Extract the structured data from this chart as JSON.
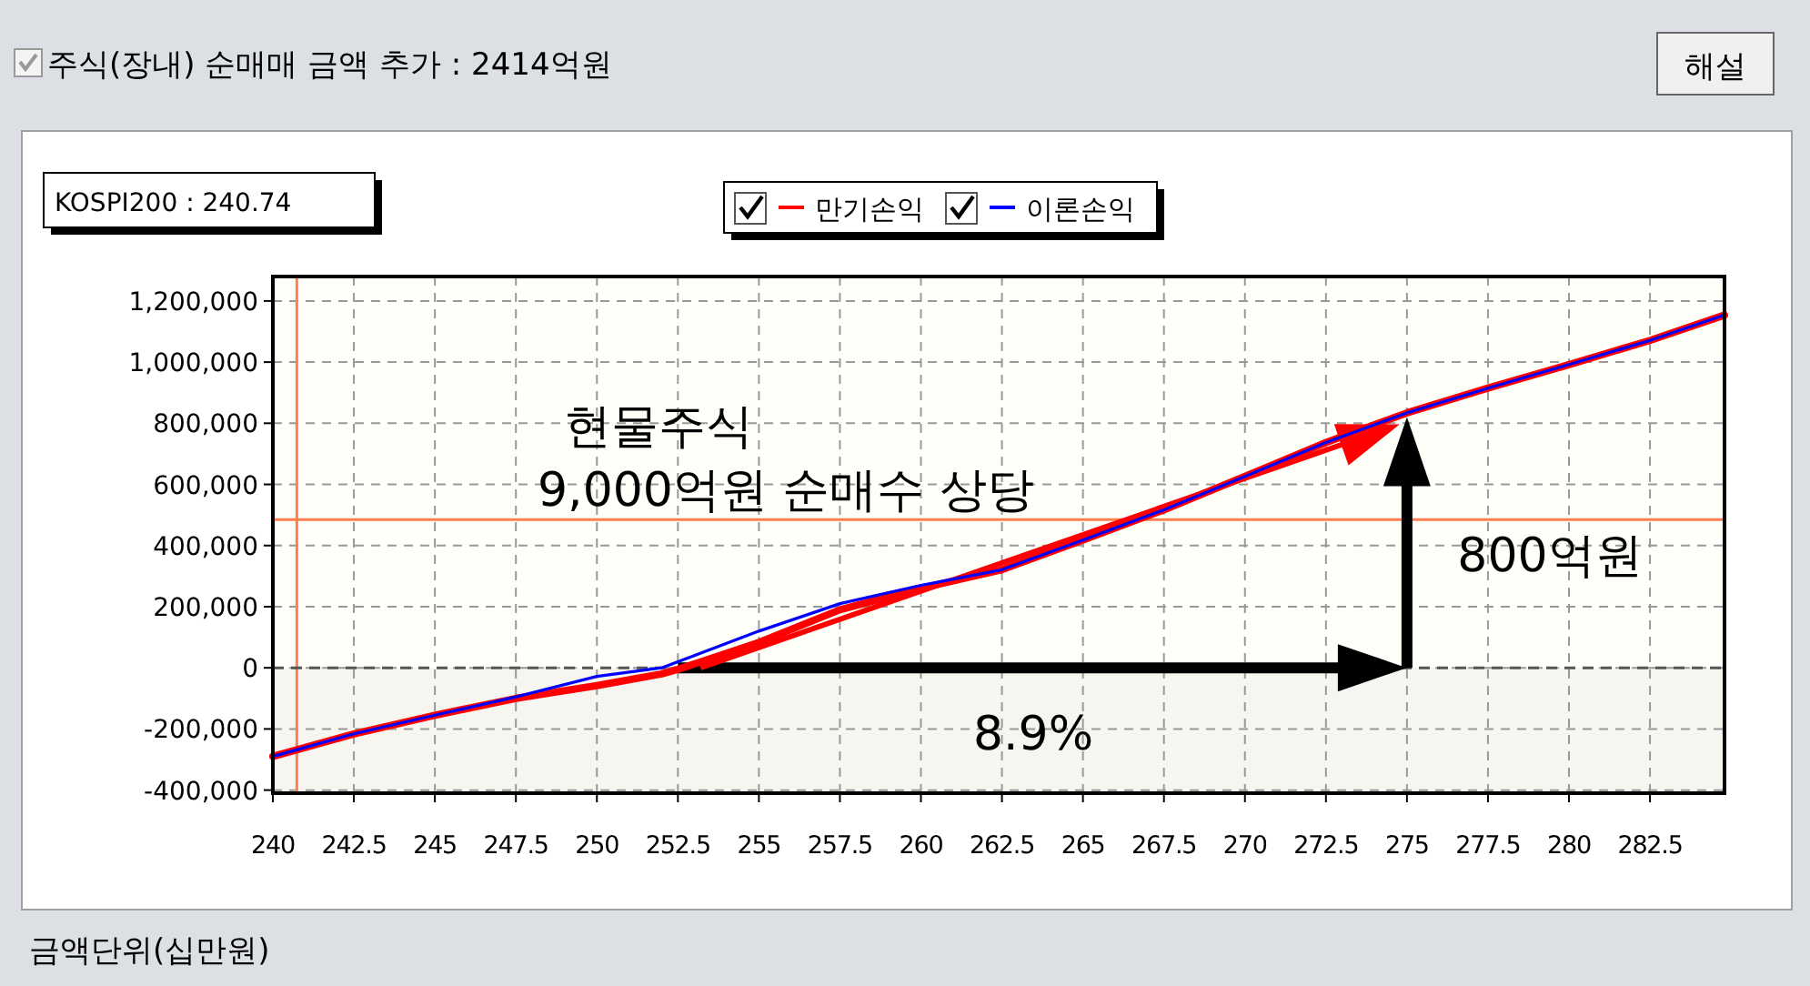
{
  "chart_data": {
    "type": "line",
    "title": "주식(장내) 순매매 금액 추가 : 2414억원",
    "x": [
      240,
      242.5,
      245,
      247.5,
      250,
      252,
      252.5,
      255,
      257.5,
      260,
      262.5,
      265,
      267.5,
      270,
      272.5,
      275,
      277.5,
      280,
      282.5,
      284.8
    ],
    "series": [
      {
        "name": "만기손익",
        "color": "#ff0000",
        "values": [
          -290000,
          -216000,
          -155000,
          -100000,
          -58000,
          -20000,
          -5000,
          83000,
          190000,
          260000,
          321000,
          418000,
          517000,
          626000,
          737000,
          834000,
          915000,
          992000,
          1071000,
          1154000
        ]
      },
      {
        "name": "이론손익",
        "color": "#0000ff",
        "values": [
          -290000,
          -216000,
          -155000,
          -95000,
          -28000,
          0,
          20000,
          120000,
          210000,
          270000,
          321000,
          418000,
          517000,
          626000,
          737000,
          834000,
          915000,
          992000,
          1071000,
          1154000
        ]
      }
    ],
    "xlim": [
      240,
      284.8
    ],
    "ylim": [
      -410000,
      1280000
    ],
    "xticks": [
      240,
      242.5,
      245,
      247.5,
      250,
      252.5,
      255,
      257.5,
      260,
      262.5,
      265,
      267.5,
      270,
      272.5,
      275,
      277.5,
      280,
      282.5
    ],
    "yticks": [
      {
        "value": -400000,
        "label": "-400,000"
      },
      {
        "value": -200000,
        "label": "-200,000"
      },
      0,
      {
        "value": 200000,
        "label": "200,000"
      },
      {
        "value": 400000,
        "label": "400,000"
      },
      {
        "value": 600000,
        "label": "600,000"
      },
      {
        "value": 800000,
        "label": "800,000"
      },
      {
        "value": 1000000,
        "label": "1,000,000"
      },
      {
        "value": 1200000,
        "label": "1,200,000"
      }
    ],
    "ref_lines": [
      {
        "axis": "x",
        "value": 240.74,
        "label": "KOSPI200 : 240.74",
        "color": "#ff7f50"
      },
      {
        "axis": "y",
        "value": 485000,
        "color": "#ff7f50"
      },
      {
        "axis": "y",
        "value": 0,
        "color": "#555555",
        "line_style": "dashed"
      }
    ],
    "bands": [
      {
        "axis": "y",
        "from": -410000,
        "to": 0,
        "color": "#f6f5f0"
      }
    ],
    "annotations": [
      "현물주식",
      "9,000억원 순매수 상당",
      "800억원",
      "8.9%",
      "해설",
      "금액단위(십만원)"
    ],
    "grid": true,
    "legend": "top",
    "line_style": "solid",
    "marker": "none"
  }
}
